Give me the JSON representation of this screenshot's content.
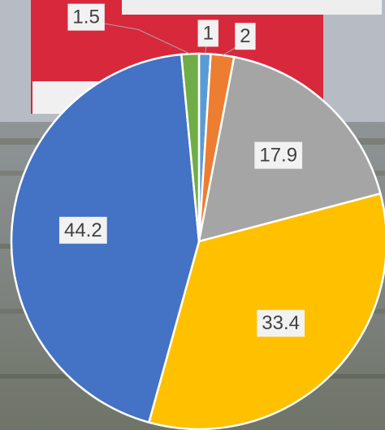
{
  "chart_data": {
    "type": "pie",
    "series": [
      {
        "values": [
          1,
          2,
          17.9,
          33.4,
          44.2,
          1.5
        ],
        "colors": [
          "#5b9bd5",
          "#ed7d31",
          "#a5a5a5",
          "#ffc000",
          "#4472c4",
          "#70ad47"
        ]
      }
    ]
  }
}
